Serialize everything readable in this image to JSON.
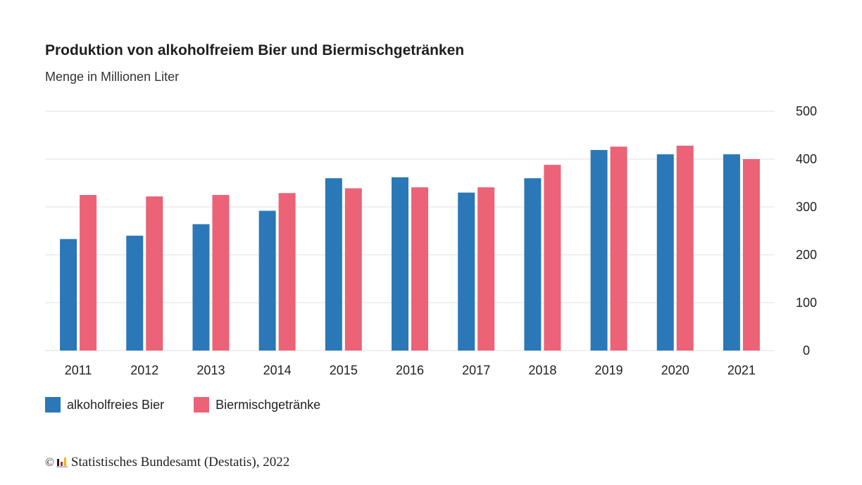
{
  "colors": {
    "series1": "#2a78b7",
    "series2": "#ec6277",
    "grid": "#e2e2e2",
    "text": "#222222"
  },
  "source": {
    "copyright": "©",
    "text": "Statistisches Bundesamt (Destatis), 2022",
    "logo_icon": "destatis-logo-icon"
  },
  "chart_data": {
    "type": "bar",
    "title": "Produktion von alkoholfreiem Bier und Biermischgetränken",
    "subtitle": "Menge in Millionen Liter",
    "categories": [
      "2011",
      "2012",
      "2013",
      "2014",
      "2015",
      "2016",
      "2017",
      "2018",
      "2019",
      "2020",
      "2021"
    ],
    "series": [
      {
        "name": "alkoholfreies Bier",
        "color": "#2a78b7",
        "values": [
          233,
          240,
          264,
          292,
          360,
          362,
          330,
          360,
          419,
          410,
          410
        ]
      },
      {
        "name": "Biermischgetränke",
        "color": "#ec6277",
        "values": [
          325,
          322,
          325,
          329,
          339,
          341,
          341,
          388,
          426,
          428,
          400
        ]
      }
    ],
    "ylim": [
      0,
      500
    ],
    "yticks": [
      0,
      100,
      200,
      300,
      400,
      500
    ],
    "y_axis_side": "right",
    "grid": true,
    "legend": "bottom-left"
  }
}
